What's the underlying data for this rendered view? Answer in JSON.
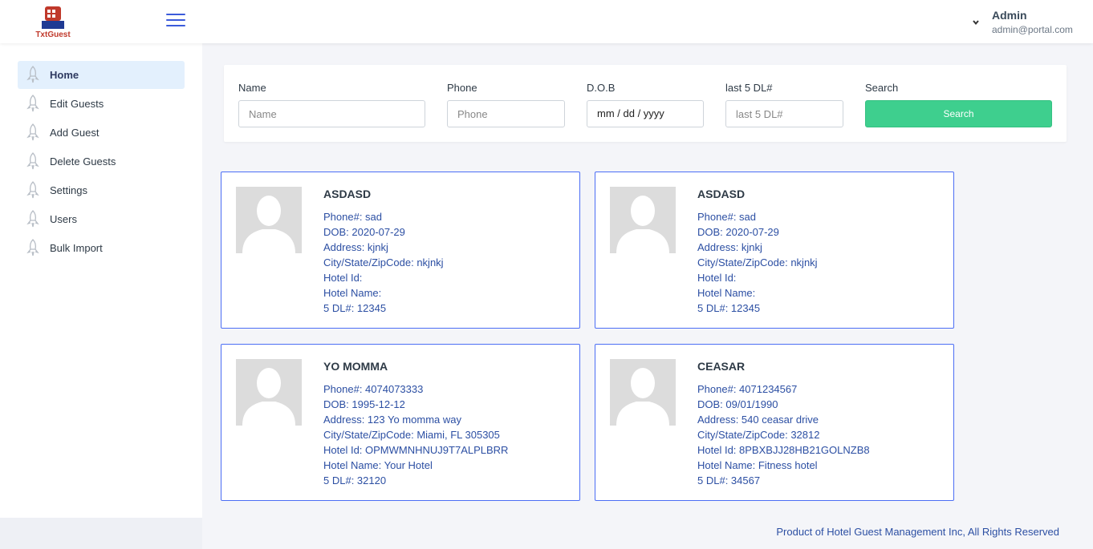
{
  "header": {
    "logo_text": "TxtGuest",
    "user_name": "Admin",
    "user_email": "admin@portal.com"
  },
  "sidebar": {
    "items": [
      {
        "label": "Home",
        "icon": "rocket-icon",
        "active": true
      },
      {
        "label": "Edit Guests",
        "icon": "rocket-icon",
        "active": false
      },
      {
        "label": "Add Guest",
        "icon": "rocket-icon",
        "active": false
      },
      {
        "label": "Delete Guests",
        "icon": "rocket-icon",
        "active": false
      },
      {
        "label": "Settings",
        "icon": "rocket-icon",
        "active": false
      },
      {
        "label": "Users",
        "icon": "rocket-icon",
        "active": false
      },
      {
        "label": "Bulk Import",
        "icon": "rocket-icon",
        "active": false
      }
    ]
  },
  "search": {
    "name_label": "Name",
    "name_placeholder": "Name",
    "phone_label": "Phone",
    "phone_placeholder": "Phone",
    "dob_label": "D.O.B",
    "dob_value": "mm / dd / yyyy",
    "dl_label": "last 5 DL#",
    "dl_placeholder": "last 5 DL#",
    "search_label": "Search",
    "search_button": "Search"
  },
  "guests": [
    {
      "name": "ASDASD",
      "phone": "Phone#: sad",
      "dob": "DOB: 2020-07-29",
      "address": "Address: kjnkj",
      "city": "City/State/ZipCode: nkjnkj",
      "hotel_id": "Hotel Id:",
      "hotel_name": "Hotel Name:",
      "dl": "5 DL#: 12345"
    },
    {
      "name": "ASDASD",
      "phone": "Phone#: sad",
      "dob": "DOB: 2020-07-29",
      "address": "Address: kjnkj",
      "city": "City/State/ZipCode: nkjnkj",
      "hotel_id": "Hotel Id:",
      "hotel_name": "Hotel Name:",
      "dl": "5 DL#: 12345"
    },
    {
      "name": "YO MOMMA",
      "phone": "Phone#: 4074073333",
      "dob": "DOB: 1995-12-12",
      "address": "Address: 123 Yo momma way",
      "city": "City/State/ZipCode: Miami, FL 305305",
      "hotel_id": "Hotel Id: OPMWMNHNUJ9T7ALPLBRR",
      "hotel_name": "Hotel Name: Your Hotel",
      "dl": "5 DL#: 32120"
    },
    {
      "name": "CEASAR",
      "phone": "Phone#: 4071234567",
      "dob": "DOB: 09/01/1990",
      "address": "Address: 540 ceasar drive",
      "city": "City/State/ZipCode: 32812",
      "hotel_id": "Hotel Id: 8PBXBJJ28HB21GOLNZB8",
      "hotel_name": "Hotel Name: Fitness hotel",
      "dl": "5 DL#: 34567"
    }
  ],
  "footer": {
    "text": "Product of Hotel Guest Management Inc, All Rights Reserved"
  },
  "colors": {
    "accent": "#3b5bdb",
    "search_button": "#3ecf8e",
    "card_border": "#4c6ef5",
    "link_text": "#2c4fa3",
    "active_nav": "#e3f0fd"
  }
}
